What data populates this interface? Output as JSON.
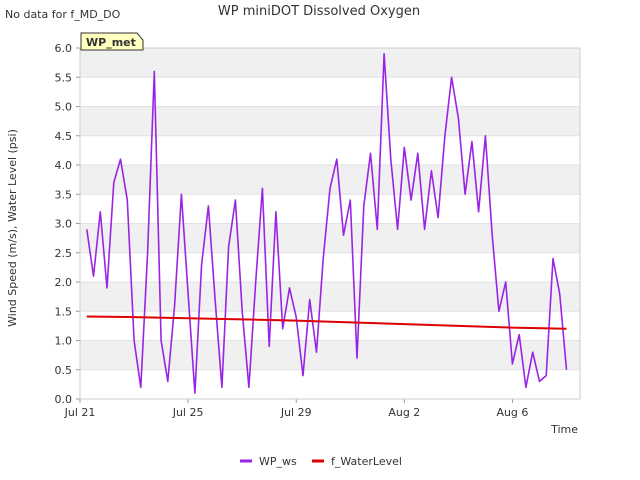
{
  "notice": "No data for f_MD_DO",
  "badge": "WP_met",
  "colors": {
    "wp_ws": "#9a24e6",
    "water_level": "#dd0000",
    "band": "#f0f0f0",
    "badge_bg": "#ffffc0",
    "badge_text": "#8b0000"
  },
  "chart_data": {
    "type": "line",
    "title": "WP miniDOT Dissolved Oxygen",
    "xlabel": "Time",
    "ylabel": "Wind Speed (m/s), Water Level (psi)",
    "x_ticks": [
      {
        "date": "2024-07-21",
        "label": "Jul 21"
      },
      {
        "date": "2024-07-25",
        "label": "Jul 25"
      },
      {
        "date": "2024-07-29",
        "label": "Jul 29"
      },
      {
        "date": "2024-08-02",
        "label": "Aug 2"
      },
      {
        "date": "2024-08-06",
        "label": "Aug 6"
      }
    ],
    "xlim": [
      "2024-07-21T00:00",
      "2024-08-08T12:00"
    ],
    "y_ticks": [
      "0.0",
      "0.5",
      "1.0",
      "1.5",
      "2.0",
      "2.5",
      "3.0",
      "3.5",
      "4.0",
      "4.5",
      "5.0",
      "5.5",
      "6.0"
    ],
    "ylim": [
      0,
      6
    ],
    "grid": "horizontal bands",
    "legend": "bottom",
    "series": [
      {
        "name": "WP_ws",
        "x": [
          "2024-07-21T06:00",
          "2024-07-21T12:00",
          "2024-07-21T18:00",
          "2024-07-22T00:00",
          "2024-07-22T06:00",
          "2024-07-22T12:00",
          "2024-07-22T18:00",
          "2024-07-23T00:00",
          "2024-07-23T06:00",
          "2024-07-23T12:00",
          "2024-07-23T18:00",
          "2024-07-24T00:00",
          "2024-07-24T06:00",
          "2024-07-24T12:00",
          "2024-07-24T18:00",
          "2024-07-25T00:00",
          "2024-07-25T06:00",
          "2024-07-25T12:00",
          "2024-07-25T18:00",
          "2024-07-26T00:00",
          "2024-07-26T06:00",
          "2024-07-26T12:00",
          "2024-07-26T18:00",
          "2024-07-27T00:00",
          "2024-07-27T06:00",
          "2024-07-27T12:00",
          "2024-07-27T18:00",
          "2024-07-28T00:00",
          "2024-07-28T06:00",
          "2024-07-28T12:00",
          "2024-07-28T18:00",
          "2024-07-29T00:00",
          "2024-07-29T06:00",
          "2024-07-29T12:00",
          "2024-07-29T18:00",
          "2024-07-30T00:00",
          "2024-07-30T06:00",
          "2024-07-30T12:00",
          "2024-07-30T18:00",
          "2024-07-31T00:00",
          "2024-07-31T06:00",
          "2024-07-31T12:00",
          "2024-07-31T18:00",
          "2024-08-01T00:00",
          "2024-08-01T06:00",
          "2024-08-01T12:00",
          "2024-08-01T18:00",
          "2024-08-02T00:00",
          "2024-08-02T06:00",
          "2024-08-02T12:00",
          "2024-08-02T18:00",
          "2024-08-03T00:00",
          "2024-08-03T06:00",
          "2024-08-03T12:00",
          "2024-08-03T18:00",
          "2024-08-04T00:00",
          "2024-08-04T06:00",
          "2024-08-04T12:00",
          "2024-08-04T18:00",
          "2024-08-05T00:00",
          "2024-08-05T06:00",
          "2024-08-05T12:00",
          "2024-08-05T18:00",
          "2024-08-06T00:00",
          "2024-08-06T06:00",
          "2024-08-06T12:00",
          "2024-08-06T18:00",
          "2024-08-07T00:00",
          "2024-08-07T06:00",
          "2024-08-07T12:00",
          "2024-08-07T18:00",
          "2024-08-08T00:00"
        ],
        "values": [
          2.9,
          2.1,
          3.2,
          1.9,
          3.7,
          4.1,
          3.4,
          1.0,
          0.2,
          2.5,
          5.6,
          1.0,
          0.3,
          1.6,
          3.5,
          1.8,
          0.1,
          2.3,
          3.3,
          1.7,
          0.2,
          2.6,
          3.4,
          1.5,
          0.2,
          2.0,
          3.6,
          0.9,
          3.2,
          1.2,
          1.9,
          1.4,
          0.4,
          1.7,
          0.8,
          2.4,
          3.6,
          4.1,
          2.8,
          3.4,
          0.7,
          3.3,
          4.2,
          2.9,
          5.9,
          4.1,
          2.9,
          4.3,
          3.4,
          4.2,
          2.9,
          3.9,
          3.1,
          4.5,
          5.5,
          4.8,
          3.5,
          4.4,
          3.2,
          4.5,
          2.8,
          1.5,
          2.0,
          0.6,
          1.1,
          0.2,
          0.8,
          0.3,
          0.4,
          2.4,
          1.8,
          0.5
        ]
      },
      {
        "name": "f_WaterLevel",
        "x": [
          "2024-07-21T06:00",
          "2024-07-23T00:00",
          "2024-07-25T00:00",
          "2024-07-27T00:00",
          "2024-07-29T00:00",
          "2024-07-31T00:00",
          "2024-08-02T00:00",
          "2024-08-04T00:00",
          "2024-08-06T00:00",
          "2024-08-08T00:00"
        ],
        "values": [
          1.41,
          1.4,
          1.38,
          1.36,
          1.34,
          1.31,
          1.28,
          1.25,
          1.22,
          1.2
        ]
      }
    ]
  }
}
